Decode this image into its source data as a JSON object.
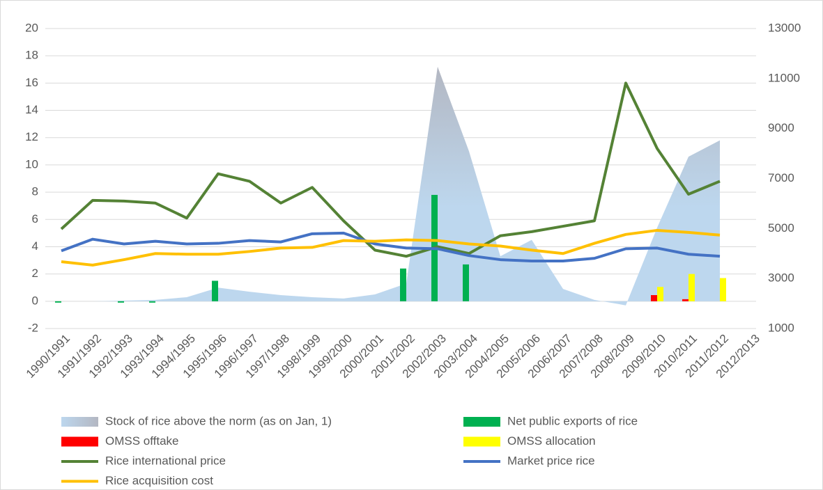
{
  "chart_data": {
    "type": "combo",
    "categories": [
      "1990/1991",
      "1991/1992",
      "1992/1993",
      "1993/1994",
      "1994/1995",
      "1995/1996",
      "1996/1997",
      "1997/1998",
      "1998/1999",
      "1999/2000",
      "2000/2001",
      "2001/2002",
      "2002/2003",
      "2003/2004",
      "2004/2005",
      "2005/2006",
      "2006/2007",
      "2007/2008",
      "2008/2009",
      "2009/2010",
      "2010/2011",
      "2011/2012",
      "2012/2013"
    ],
    "ylim": [
      -2,
      20
    ],
    "yticks": [
      -2,
      0,
      2,
      4,
      6,
      8,
      10,
      12,
      14,
      16,
      18,
      20
    ],
    "y2lim": [
      1000,
      13000
    ],
    "y2ticks": [
      1000,
      3000,
      5000,
      7000,
      9000,
      11000,
      13000
    ],
    "grid": true,
    "series": [
      {
        "name": "Stock of rice above the norm (as on Jan, 1)",
        "type": "area",
        "color": "#bdd7ee",
        "values": [
          0,
          0,
          0.05,
          0.1,
          0.3,
          1.0,
          0.7,
          0.45,
          0.3,
          0.2,
          0.5,
          1.3,
          17.2,
          11.0,
          3.3,
          4.5,
          0.9,
          0.1,
          -0.3,
          5.4,
          10.6,
          11.8,
          null
        ]
      },
      {
        "name": "Net public exports of rice",
        "type": "bar",
        "color": "#00b050",
        "values": [
          -0.1,
          null,
          -0.1,
          -0.1,
          null,
          1.5,
          null,
          null,
          null,
          null,
          null,
          2.4,
          7.8,
          2.7,
          null,
          null,
          null,
          null,
          null,
          null,
          null,
          null,
          null
        ]
      },
      {
        "name": "OMSS offtake",
        "type": "bar",
        "color": "#ff0000",
        "values": [
          null,
          null,
          null,
          null,
          null,
          null,
          null,
          null,
          null,
          null,
          null,
          null,
          null,
          null,
          null,
          null,
          null,
          null,
          null,
          0.45,
          0.15,
          null,
          null
        ]
      },
      {
        "name": "OMSS allocation",
        "type": "bar",
        "color": "#ffff00",
        "values": [
          null,
          null,
          null,
          null,
          null,
          null,
          null,
          null,
          null,
          null,
          null,
          null,
          null,
          null,
          null,
          null,
          null,
          null,
          null,
          1.05,
          2.0,
          1.7,
          null
        ]
      },
      {
        "name": "Rice international price",
        "type": "line",
        "color": "#548235",
        "values": [
          5.3,
          7.4,
          7.35,
          7.2,
          6.1,
          9.35,
          8.8,
          7.2,
          8.35,
          5.9,
          3.75,
          3.3,
          4.0,
          3.5,
          4.8,
          5.1,
          5.5,
          5.9,
          16.0,
          11.2,
          7.85,
          8.8,
          null
        ]
      },
      {
        "name": "Market price rice",
        "type": "line",
        "color": "#4472c4",
        "values": [
          3.7,
          4.55,
          4.2,
          4.4,
          4.2,
          4.25,
          4.45,
          4.35,
          4.95,
          5.0,
          4.2,
          3.9,
          3.85,
          3.35,
          3.05,
          2.95,
          2.95,
          3.15,
          3.85,
          3.9,
          3.45,
          3.3,
          null
        ]
      },
      {
        "name": "Rice acquisition cost",
        "type": "line",
        "color": "#ffc000",
        "values": [
          2.9,
          2.65,
          3.05,
          3.5,
          3.45,
          3.45,
          3.65,
          3.9,
          3.95,
          4.45,
          4.4,
          4.5,
          4.45,
          4.2,
          4.05,
          3.75,
          3.5,
          4.25,
          4.9,
          5.2,
          5.05,
          4.85,
          null
        ]
      }
    ]
  }
}
